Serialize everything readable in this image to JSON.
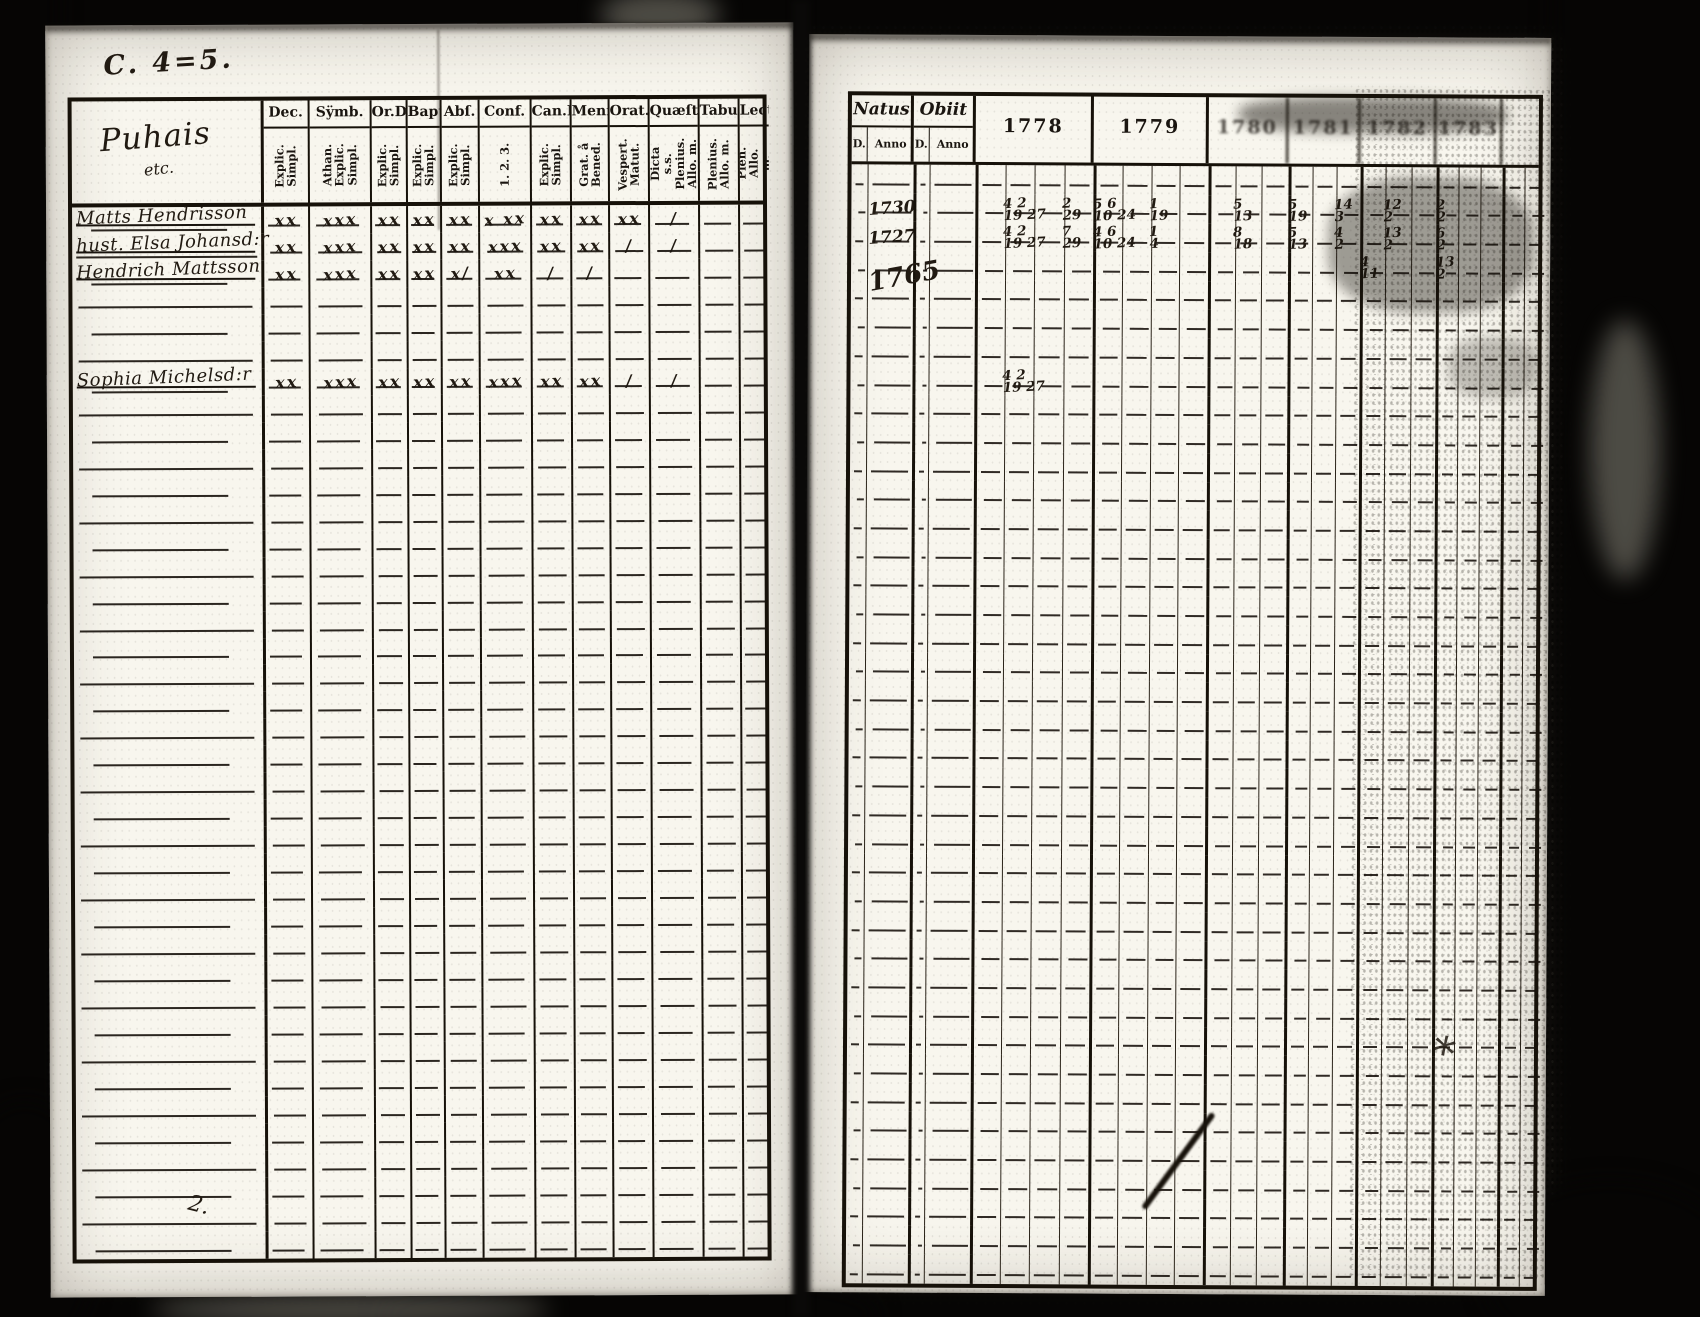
{
  "annotations": {
    "top_left": "C. 4=5.",
    "bottom_squiggle": "2.",
    "margin_doodle": "∗"
  },
  "left_page": {
    "group": {
      "title": "Puhais",
      "subtitle": "etc."
    },
    "columns": [
      {
        "label": "Dec.",
        "sub": "Explic.\nSimpl."
      },
      {
        "label": "Sÿmb.",
        "sub": "Athan.\nExplic.\nSimpl."
      },
      {
        "label": "Or.D",
        "sub": "Explic.\nSimpl."
      },
      {
        "label": "Bapt",
        "sub": "Explic.\nSimpl."
      },
      {
        "label": "Abſ.",
        "sub": "Explic.\nSimpl."
      },
      {
        "label": "Conf.",
        "sub": "1.  2.  3."
      },
      {
        "label": "Can.D",
        "sub": "Explic.\nSimpl."
      },
      {
        "label": "Menſ.",
        "sub": "Grat. å\nBened."
      },
      {
        "label": "Orat.",
        "sub": "Vespert.\nMatut."
      },
      {
        "label": "Quæſt",
        "sub": "Dicta s.s.\nPlenius.\nAllo. m."
      },
      {
        "label": "Tabul.",
        "sub": "Plenius.\nAllo. m."
      },
      {
        "label": "Lect.",
        "sub": "Plen.\nAllo. m."
      }
    ],
    "row_count": 39,
    "entries": [
      {
        "row": 1,
        "name": "Matts Hendrisson",
        "marks": [
          "xx",
          "xxx",
          "xx",
          "xx",
          "xx",
          "x xx",
          "xx",
          "xx",
          "xx",
          "/",
          "",
          ""
        ]
      },
      {
        "row": 2,
        "name": "hust. Elsa Johansd:r",
        "marks": [
          "xx",
          "xxx",
          "xx",
          "xx",
          "xx",
          "xxx",
          "xx",
          "xx",
          "/",
          "/",
          "",
          ""
        ]
      },
      {
        "row": 3,
        "name": "Hendrich Mattsson",
        "marks": [
          "xx",
          "xxx",
          "xx",
          "xx",
          "x/",
          "xx",
          "/",
          "/",
          "",
          "",
          "",
          ""
        ]
      },
      {
        "row": 7,
        "name": "Sophia Michelsd:r",
        "marks": [
          "xx",
          "xxx",
          "xx",
          "xx",
          "xx",
          "xxx",
          "xx",
          "xx",
          "/",
          "/",
          "",
          ""
        ]
      }
    ]
  },
  "right_page": {
    "natus_label": "Natus",
    "obiit_label": "Obiit",
    "day_label": "D.",
    "anno_label": "Anno",
    "years": [
      "1778",
      "1779",
      "1780",
      "1781",
      "1782",
      "1783"
    ],
    "row_count": 39,
    "natus_entries": [
      {
        "row": 2,
        "anno": "1730",
        "big": false
      },
      {
        "row": 3,
        "anno": "1727",
        "big": false
      },
      {
        "row": 4,
        "anno": "1765",
        "big": true
      }
    ],
    "date_entries": [
      {
        "row": 2,
        "year": 0,
        "sub": 1,
        "value": "4 2|19 27"
      },
      {
        "row": 2,
        "year": 0,
        "sub": 3,
        "value": "2|29"
      },
      {
        "row": 2,
        "year": 1,
        "sub": 0,
        "value": "5 6|10 24"
      },
      {
        "row": 2,
        "year": 1,
        "sub": 2,
        "value": "1|19"
      },
      {
        "row": 2,
        "year": 2,
        "sub": 1,
        "value": "5|13"
      },
      {
        "row": 2,
        "year": 3,
        "sub": 0,
        "value": "5|19"
      },
      {
        "row": 2,
        "year": 3,
        "sub": 2,
        "value": "14|3"
      },
      {
        "row": 2,
        "year": 4,
        "sub": 1,
        "value": "12|2"
      },
      {
        "row": 2,
        "year": 5,
        "sub": 0,
        "value": "2|2"
      },
      {
        "row": 3,
        "year": 0,
        "sub": 1,
        "value": "4 2|19 27"
      },
      {
        "row": 3,
        "year": 0,
        "sub": 3,
        "value": "7|29"
      },
      {
        "row": 3,
        "year": 1,
        "sub": 0,
        "value": "4 6|10 24"
      },
      {
        "row": 3,
        "year": 1,
        "sub": 2,
        "value": "1|4"
      },
      {
        "row": 3,
        "year": 2,
        "sub": 1,
        "value": "8|18"
      },
      {
        "row": 3,
        "year": 3,
        "sub": 0,
        "value": "5|13"
      },
      {
        "row": 3,
        "year": 3,
        "sub": 2,
        "value": "4|2"
      },
      {
        "row": 3,
        "year": 4,
        "sub": 1,
        "value": "13|2"
      },
      {
        "row": 3,
        "year": 5,
        "sub": 0,
        "value": "6|2"
      },
      {
        "row": 4,
        "year": 4,
        "sub": 0,
        "value": "4|11"
      },
      {
        "row": 4,
        "year": 5,
        "sub": 0,
        "value": "13|2"
      },
      {
        "row": 8,
        "year": 0,
        "sub": 1,
        "value": "4 2|19 27"
      }
    ]
  }
}
